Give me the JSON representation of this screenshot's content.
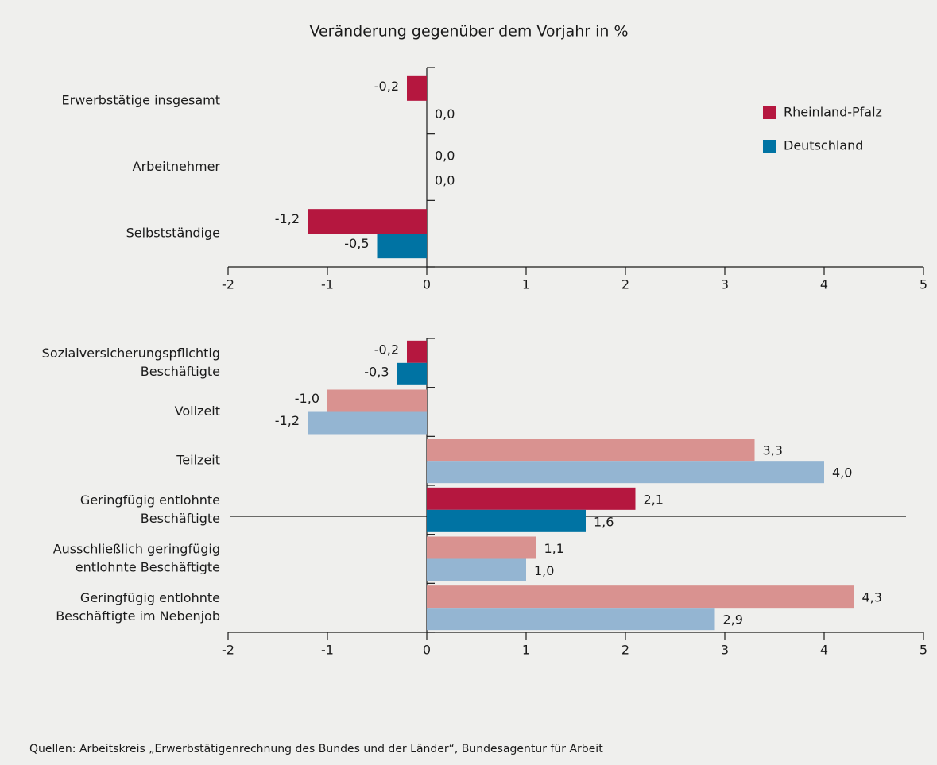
{
  "source": "Quellen: Arbeitskreis „Erwerbstätigenrechnung des Bundes und der Länder“, Bundesagentur für Arbeit",
  "chart_data": [
    {
      "type": "bar",
      "orientation": "horizontal",
      "title": "Veränderung gegenüber dem Vorjahr in %",
      "categories": [
        "Erwerbstätige insgesamt",
        "Arbeitnehmer",
        "Selbstständige"
      ],
      "series": [
        {
          "name": "Rheinland-Pfalz",
          "color": "#b5173f",
          "values": [
            -0.2,
            0.0,
            -1.2
          ],
          "value_labels": [
            "-0,2",
            "0,0",
            "-1,2"
          ]
        },
        {
          "name": "Deutschland",
          "color": "#0073a3",
          "values": [
            0.0,
            0.0,
            -0.5
          ],
          "value_labels": [
            "0,0",
            "0,0",
            "-0,5"
          ]
        }
      ],
      "xlim": [
        -2,
        5
      ],
      "xticks": [
        -2,
        -1,
        0,
        1,
        2,
        3,
        4,
        5
      ],
      "legend": "upper right"
    },
    {
      "type": "bar",
      "orientation": "horizontal",
      "categories": [
        [
          "Sozialversicherungspflichtig",
          "Beschäftigte"
        ],
        [
          "Vollzeit"
        ],
        [
          "Teilzeit"
        ],
        [
          "Geringfügig entlohnte",
          "Beschäftigte"
        ],
        [
          "Ausschließlich geringfügig",
          "entlohnte Beschäftigte"
        ],
        [
          "Geringfügig entlohnte",
          "Beschäftigte im Nebenjob"
        ]
      ],
      "series": [
        {
          "colors": [
            "#b5173f",
            "#d99290",
            "#d99290",
            "#b5173f",
            "#d99290",
            "#d99290"
          ],
          "values": [
            -0.2,
            -1.0,
            3.3,
            2.1,
            1.1,
            4.3
          ],
          "value_labels": [
            "-0,2",
            "-1,0",
            "3,3",
            "2,1",
            "1,1",
            "4,3"
          ]
        },
        {
          "colors": [
            "#0073a3",
            "#94b5d2",
            "#94b5d2",
            "#0073a3",
            "#94b5d2",
            "#94b5d2"
          ],
          "values": [
            -0.3,
            -1.2,
            4.0,
            1.6,
            1.0,
            2.9
          ],
          "value_labels": [
            "-0,3",
            "-1,2",
            "4,0",
            "1,6",
            "1,0",
            "2,9"
          ]
        }
      ],
      "xlim": [
        -2,
        5
      ],
      "xticks": [
        -2,
        -1,
        0,
        1,
        2,
        3,
        4,
        5
      ]
    }
  ]
}
